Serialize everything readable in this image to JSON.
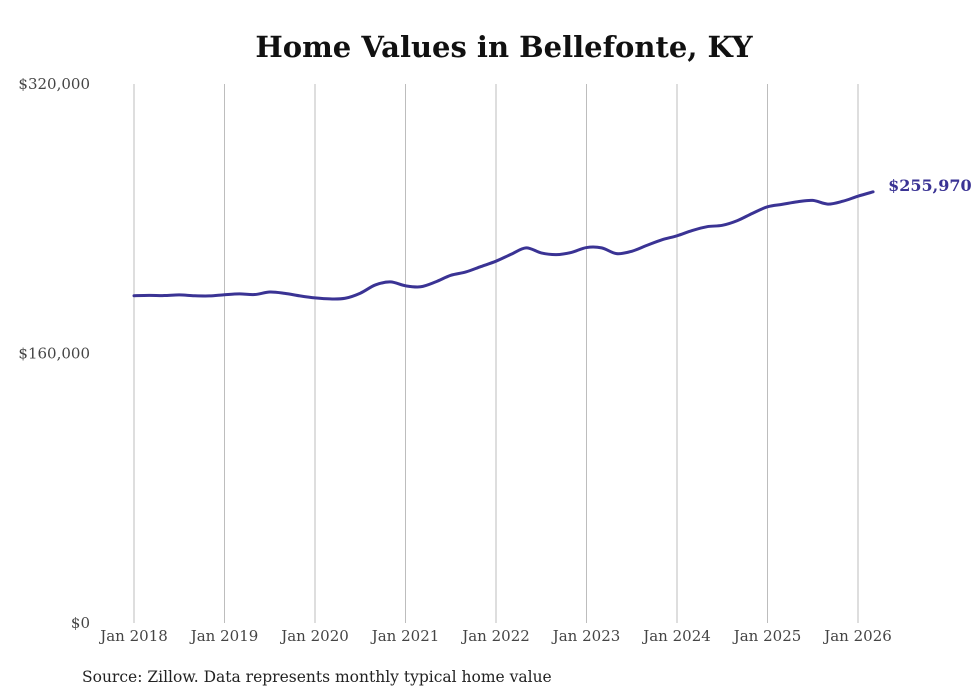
{
  "chart_data": {
    "type": "line",
    "title": "Home Values in Bellefonte, KY",
    "xlabel": "",
    "ylabel": "",
    "ylim": [
      0,
      320000
    ],
    "y_ticks": [
      {
        "value": 0,
        "label": "$0"
      },
      {
        "value": 160000,
        "label": "$160,000"
      },
      {
        "value": 320000,
        "label": "$320,000"
      }
    ],
    "x_ticks": [
      {
        "value": 2018,
        "label": "Jan 2018"
      },
      {
        "value": 2019,
        "label": "Jan 2019"
      },
      {
        "value": 2020,
        "label": "Jan 2020"
      },
      {
        "value": 2021,
        "label": "Jan 2021"
      },
      {
        "value": 2022,
        "label": "Jan 2022"
      },
      {
        "value": 2023,
        "label": "Jan 2023"
      },
      {
        "value": 2024,
        "label": "Jan 2024"
      },
      {
        "value": 2025,
        "label": "Jan 2025"
      },
      {
        "value": 2026,
        "label": "Jan 2026"
      }
    ],
    "xlim": [
      2018,
      2026.167
    ],
    "series": [
      {
        "name": "Typical home value",
        "color": "#3a3394",
        "x": [
          2018.0,
          2018.167,
          2018.333,
          2018.5,
          2018.667,
          2018.833,
          2019.0,
          2019.167,
          2019.333,
          2019.5,
          2019.667,
          2019.833,
          2020.0,
          2020.167,
          2020.333,
          2020.5,
          2020.667,
          2020.833,
          2021.0,
          2021.167,
          2021.333,
          2021.5,
          2021.667,
          2021.833,
          2022.0,
          2022.167,
          2022.333,
          2022.5,
          2022.667,
          2022.833,
          2023.0,
          2023.167,
          2023.333,
          2023.5,
          2023.667,
          2023.833,
          2024.0,
          2024.167,
          2024.333,
          2024.5,
          2024.667,
          2024.833,
          2025.0,
          2025.167,
          2025.333,
          2025.5,
          2025.667,
          2025.833,
          2026.0,
          2026.167
        ],
        "values": [
          194300,
          194500,
          194400,
          194800,
          194300,
          194200,
          194900,
          195400,
          195000,
          196500,
          195700,
          194200,
          193000,
          192400,
          192800,
          195800,
          200700,
          202500,
          200200,
          199600,
          202500,
          206400,
          208400,
          211600,
          214800,
          218900,
          222700,
          219700,
          218700,
          220000,
          222900,
          222700,
          219300,
          220700,
          224200,
          227500,
          229900,
          233000,
          235300,
          236100,
          238900,
          243200,
          247100,
          248600,
          250100,
          250900,
          248700,
          250400,
          253400,
          255970
        ]
      }
    ],
    "end_label": "$255,970",
    "source": "Source: Zillow. Data represents monthly typical home value"
  }
}
